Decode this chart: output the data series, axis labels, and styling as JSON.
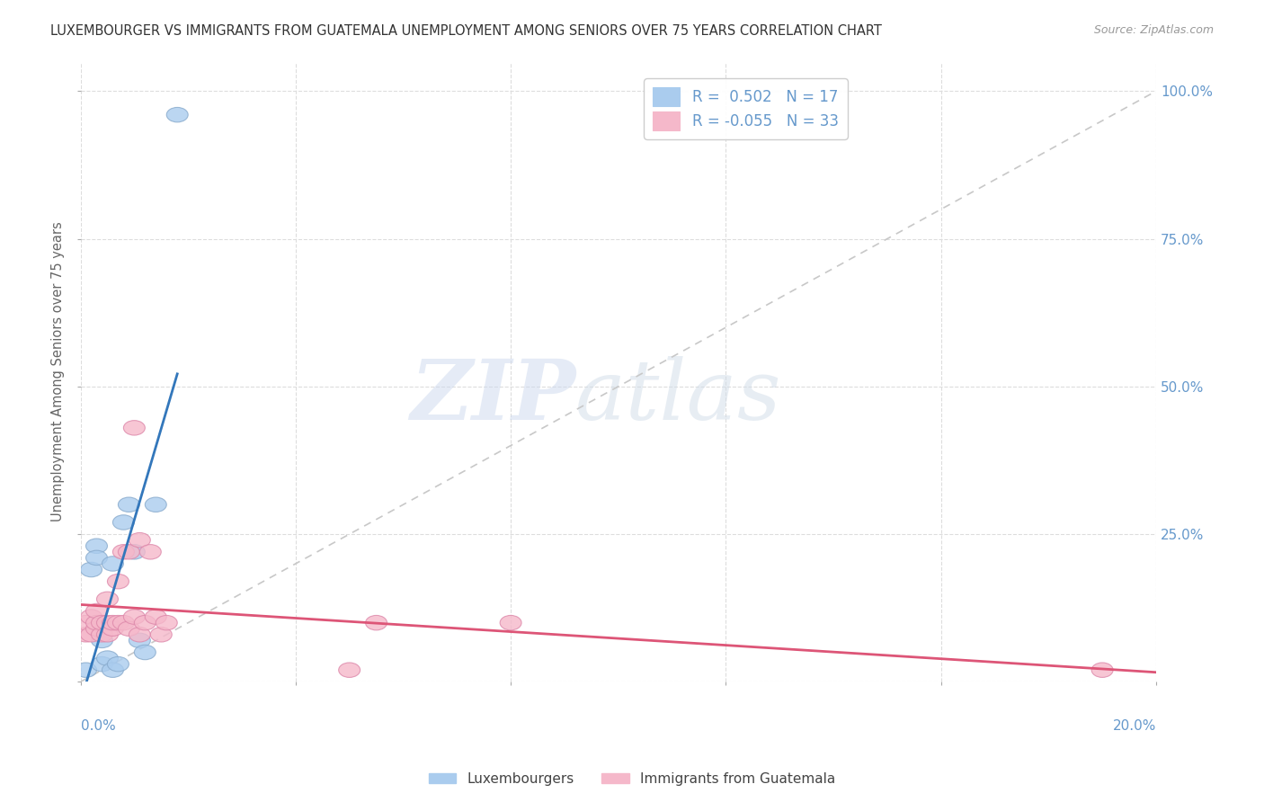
{
  "title": "LUXEMBOURGER VS IMMIGRANTS FROM GUATEMALA UNEMPLOYMENT AMONG SENIORS OVER 75 YEARS CORRELATION CHART",
  "source": "Source: ZipAtlas.com",
  "ylabel": "Unemployment Among Seniors over 75 years",
  "legend_label_blue": "Luxembourgers",
  "legend_label_pink": "Immigrants from Guatemala",
  "R_blue": 0.502,
  "N_blue": 17,
  "R_pink": -0.055,
  "N_pink": 33,
  "blue_scatter_x": [
    0.001,
    0.002,
    0.003,
    0.003,
    0.004,
    0.004,
    0.005,
    0.006,
    0.006,
    0.007,
    0.008,
    0.009,
    0.01,
    0.011,
    0.012,
    0.014,
    0.018
  ],
  "blue_scatter_y": [
    0.02,
    0.19,
    0.23,
    0.21,
    0.03,
    0.07,
    0.04,
    0.02,
    0.2,
    0.03,
    0.27,
    0.3,
    0.22,
    0.07,
    0.05,
    0.3,
    0.96
  ],
  "pink_scatter_x": [
    0.001,
    0.001,
    0.002,
    0.002,
    0.003,
    0.003,
    0.003,
    0.004,
    0.004,
    0.005,
    0.005,
    0.005,
    0.006,
    0.006,
    0.007,
    0.007,
    0.008,
    0.008,
    0.009,
    0.009,
    0.01,
    0.01,
    0.011,
    0.011,
    0.012,
    0.013,
    0.014,
    0.015,
    0.016,
    0.05,
    0.055,
    0.08,
    0.19
  ],
  "pink_scatter_y": [
    0.08,
    0.1,
    0.08,
    0.11,
    0.09,
    0.1,
    0.12,
    0.08,
    0.1,
    0.1,
    0.08,
    0.14,
    0.09,
    0.1,
    0.17,
    0.1,
    0.22,
    0.1,
    0.22,
    0.09,
    0.43,
    0.11,
    0.24,
    0.08,
    0.1,
    0.22,
    0.11,
    0.08,
    0.1,
    0.02,
    0.1,
    0.1,
    0.02
  ],
  "diag_line_color": "#c8c8c8",
  "blue_line_color": "#3377bb",
  "pink_line_color": "#dd5577",
  "blue_marker_color": "#aaccee",
  "pink_marker_color": "#f5b8ca",
  "blue_edge_color": "#88aacc",
  "pink_edge_color": "#dd88aa",
  "watermark_zip": "ZIP",
  "watermark_atlas": "atlas",
  "xmin": 0.0,
  "xmax": 0.2,
  "ymin": 0.0,
  "ymax": 1.05,
  "ytick_values": [
    0.0,
    0.25,
    0.5,
    0.75,
    1.0
  ],
  "ytick_right_labels": [
    "",
    "25.0%",
    "50.0%",
    "75.0%",
    "100.0%"
  ],
  "xtick_values": [
    0.0,
    0.04,
    0.08,
    0.12,
    0.16,
    0.2
  ],
  "grid_color": "#dddddd",
  "background_color": "#ffffff",
  "title_color": "#333333",
  "source_color": "#999999",
  "ylabel_color": "#666666",
  "axis_label_color": "#6699cc",
  "marker_size": 220,
  "marker_alpha": 0.75
}
